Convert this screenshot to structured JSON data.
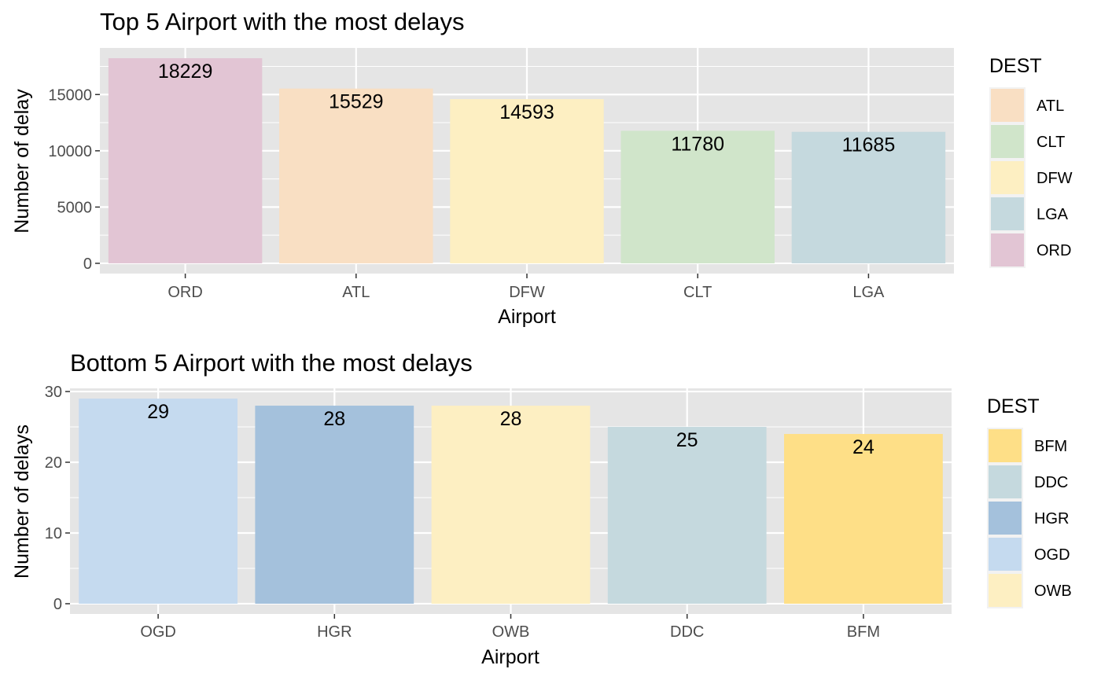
{
  "chart_data": [
    {
      "type": "bar",
      "title": "Top 5 Airport with the most delays",
      "xlabel": "Airport",
      "ylabel": "Number of delay",
      "categories": [
        "ORD",
        "ATL",
        "DFW",
        "CLT",
        "LGA"
      ],
      "values": [
        18229,
        15529,
        14593,
        11780,
        11685
      ],
      "data_labels": [
        "18229",
        "15529",
        "14593",
        "11780",
        "11685"
      ],
      "bar_colors": [
        "#E2C5D4",
        "#F9DFC3",
        "#FDEFC2",
        "#D0E5CA",
        "#C5D9DE"
      ],
      "yticks": [
        0,
        5000,
        10000,
        15000
      ],
      "ytick_labels": [
        "0",
        "5000",
        "10000",
        "15000"
      ],
      "ylim": [
        -911,
        19140
      ],
      "grid": true,
      "legend": {
        "title": "DEST",
        "position": "right",
        "entries": [
          {
            "label": "ATL",
            "color": "#F9DFC3"
          },
          {
            "label": "CLT",
            "color": "#D0E5CA"
          },
          {
            "label": "DFW",
            "color": "#FDEFC2"
          },
          {
            "label": "LGA",
            "color": "#C5D9DE"
          },
          {
            "label": "ORD",
            "color": "#E2C5D4"
          }
        ]
      }
    },
    {
      "type": "bar",
      "title": "Bottom 5 Airport with the most delays",
      "xlabel": "Airport",
      "ylabel": "Number of delays",
      "categories": [
        "OGD",
        "HGR",
        "OWB",
        "DDC",
        "BFM"
      ],
      "values": [
        29,
        28,
        28,
        25,
        24
      ],
      "data_labels": [
        "29",
        "28",
        "28",
        "25",
        "24"
      ],
      "bar_colors": [
        "#C5DAEF",
        "#A4C1DC",
        "#FDEFC2",
        "#C5D9DE",
        "#FEDF87"
      ],
      "yticks": [
        0,
        10,
        20,
        30
      ],
      "ytick_labels": [
        "0",
        "10",
        "20",
        "30"
      ],
      "ylim": [
        -1.45,
        30.45
      ],
      "grid": true,
      "legend": {
        "title": "DEST",
        "position": "right",
        "entries": [
          {
            "label": "BFM",
            "color": "#FEDF87"
          },
          {
            "label": "DDC",
            "color": "#C5D9DE"
          },
          {
            "label": "HGR",
            "color": "#A4C1DC"
          },
          {
            "label": "OGD",
            "color": "#C5DAEF"
          },
          {
            "label": "OWB",
            "color": "#FDEFC2"
          }
        ]
      }
    }
  ],
  "colors": {
    "panel_background": "#E5E5E5",
    "grid_line": "#FFFFFF",
    "tick_text": "#4D4D4D",
    "tick_mark": "#333333",
    "legend_key_border": "#F2F2F2"
  }
}
